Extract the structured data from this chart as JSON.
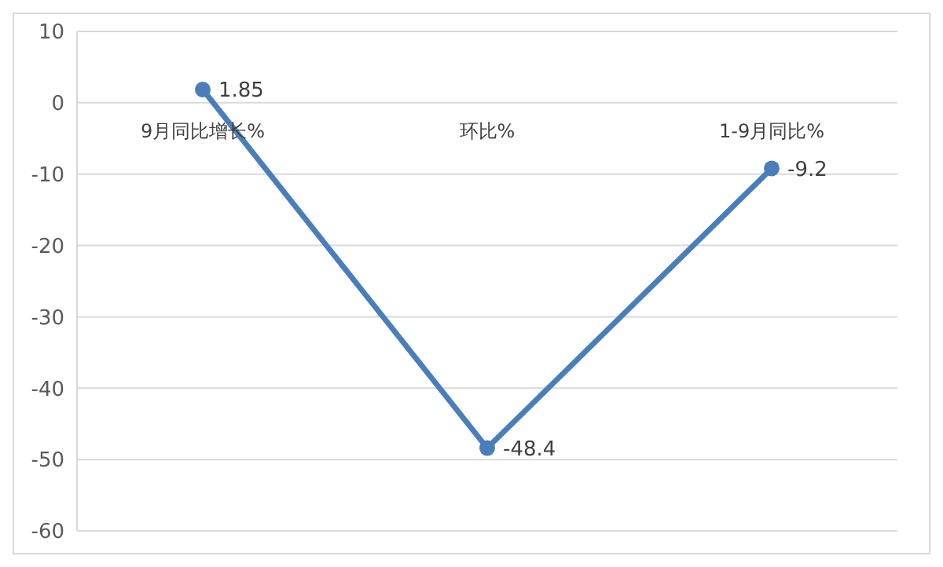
{
  "chart_data": {
    "type": "line",
    "categories": [
      "9月同比增长%",
      "环比%",
      "1-9月同比%"
    ],
    "series": [
      {
        "color": "#4a7ebb",
        "values": [
          1.85,
          -48.4,
          -9.2
        ]
      }
    ],
    "ylim": [
      -60,
      10
    ],
    "yticks": [
      -60,
      -50,
      -40,
      -30,
      -20,
      -10,
      0,
      10
    ],
    "grid": "y",
    "marker": "circle",
    "data_labels": true,
    "legend": false
  }
}
